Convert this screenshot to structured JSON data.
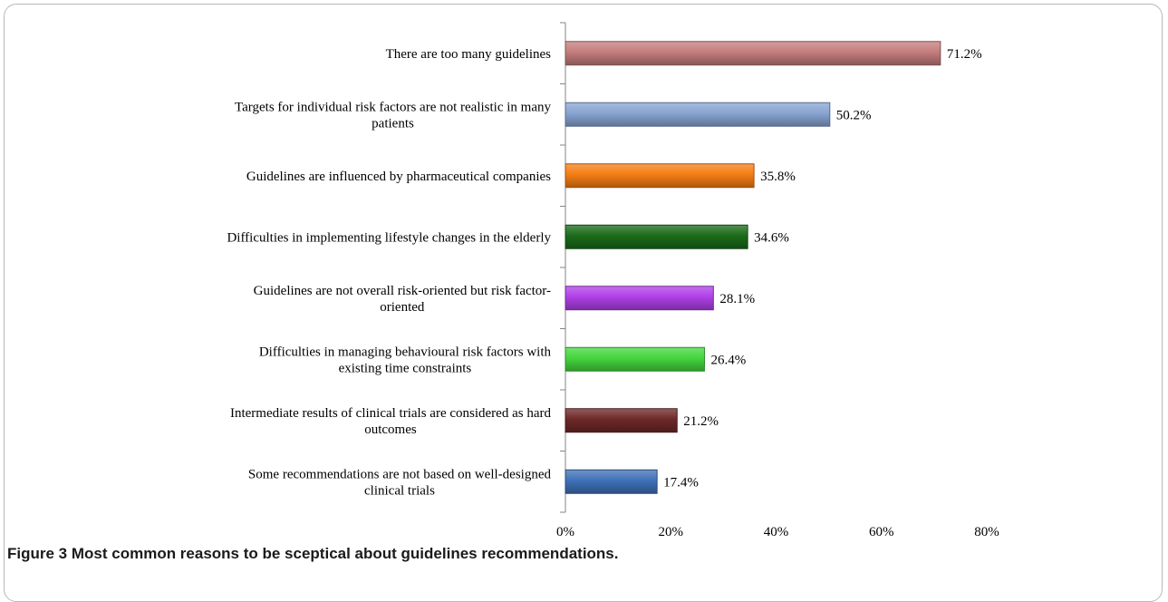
{
  "caption": {
    "figure_number": "Figure 3",
    "text": "Most common reasons to be sceptical about guidelines recommendations."
  },
  "chart_data": {
    "type": "bar",
    "orientation": "horizontal",
    "categories": [
      [
        "There are too many guidelines"
      ],
      [
        "Targets for individual risk factors are not realistic in many",
        "patients"
      ],
      [
        "Guidelines are influenced by pharmaceutical companies"
      ],
      [
        "Difficulties in implementing lifestyle changes in the elderly"
      ],
      [
        "Guidelines are not overall risk-oriented but risk factor-",
        "oriented"
      ],
      [
        "Difficulties in managing behavioural risk factors with",
        "existing time constraints"
      ],
      [
        "Intermediate results of clinical trials are considered as hard",
        "outcomes"
      ],
      [
        "Some recommendations are not based on well-designed",
        "clinical trials"
      ]
    ],
    "values": [
      71.2,
      50.2,
      35.8,
      34.6,
      28.1,
      26.4,
      21.2,
      17.4
    ],
    "value_labels": [
      "71.2%",
      "50.2%",
      "35.8%",
      "34.6%",
      "28.1%",
      "26.4%",
      "21.2%",
      "17.4%"
    ],
    "colors": [
      "#c47c7c",
      "#88a4d2",
      "#f57d14",
      "#1b6b19",
      "#b040e8",
      "#44d63e",
      "#6e2828",
      "#3f71b8"
    ],
    "xlim": [
      0,
      80
    ],
    "xticks": [
      0,
      20,
      40,
      60,
      80
    ],
    "xtick_labels": [
      "0%",
      "20%",
      "40%",
      "60%",
      "80%"
    ],
    "grid": false,
    "legend": "none"
  }
}
